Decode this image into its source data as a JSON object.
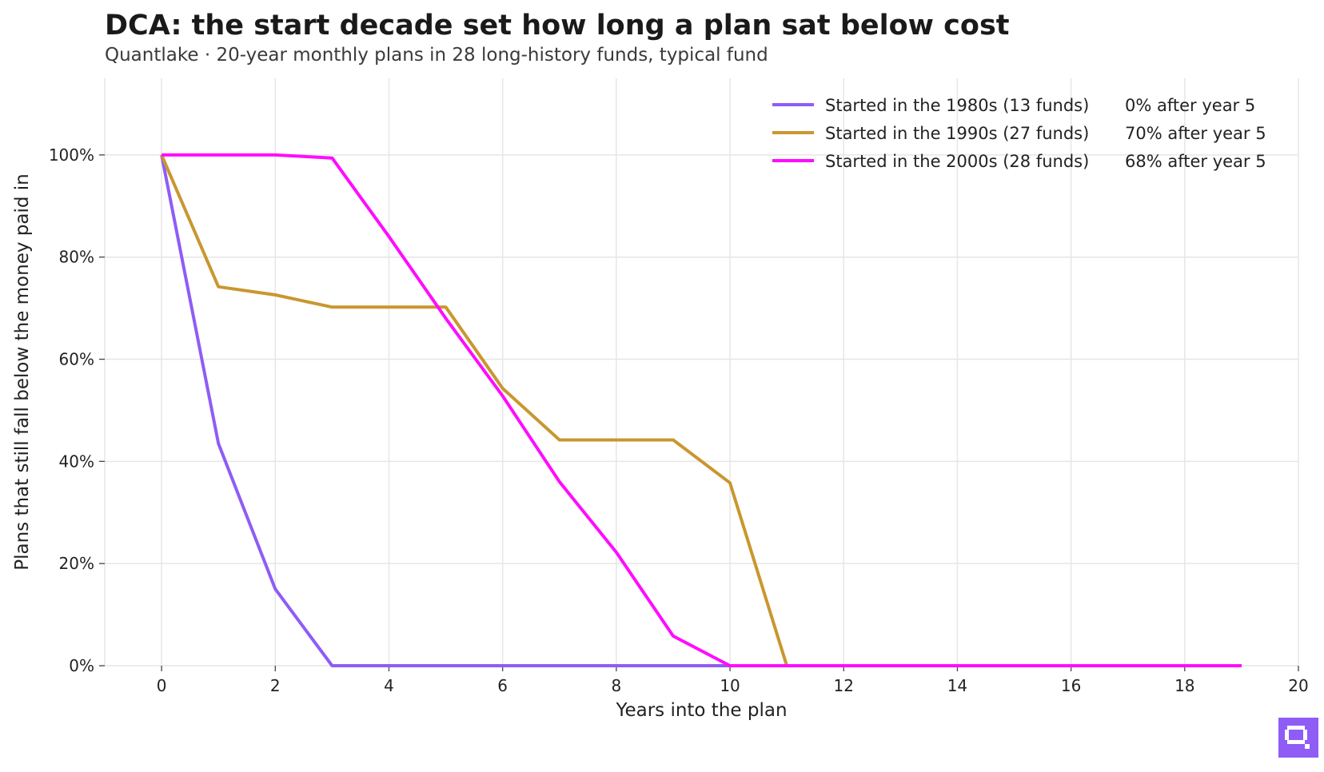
{
  "header": {
    "title": "DCA: the start decade set how long a plan sat below cost",
    "subtitle": "Quantlake  ·  20-year monthly plans in 28 long-history funds, typical fund"
  },
  "chart_data": {
    "type": "line",
    "title": "DCA: the start decade set how long a plan sat below cost",
    "subtitle": "Quantlake  ·  20-year monthly plans in 28 long-history funds, typical fund",
    "xlabel": "Years into the plan",
    "ylabel": "Plans that still fall below the money paid in",
    "xlim": [
      -1,
      20
    ],
    "ylim": [
      0,
      1.15
    ],
    "x_ticks": [
      0,
      2,
      4,
      6,
      8,
      10,
      12,
      14,
      16,
      18,
      20
    ],
    "x_tick_labels": [
      "0",
      "2",
      "4",
      "6",
      "8",
      "10",
      "12",
      "14",
      "16",
      "18",
      "20"
    ],
    "y_ticks": [
      0,
      0.2,
      0.4,
      0.6,
      0.8,
      1.0
    ],
    "y_tick_labels": [
      "0%",
      "20%",
      "40%",
      "60%",
      "80%",
      "100%"
    ],
    "grid": true,
    "legend_position": "top-right",
    "series": [
      {
        "name": "Started in the 1980s (13 funds)",
        "legend_note": "0% after year 5",
        "color": "#8f5cf6",
        "x": [
          0,
          1,
          2,
          3,
          4,
          5,
          6,
          7,
          8,
          9,
          10,
          11,
          12,
          13,
          14,
          15,
          16,
          17,
          18,
          19
        ],
        "y": [
          1.0,
          0.435,
          0.15,
          0.0,
          0.0,
          0.0,
          0.0,
          0.0,
          0.0,
          0.0,
          0.0,
          0.0,
          0.0,
          0.0,
          0.0,
          0.0,
          0.0,
          0.0,
          0.0,
          0.0
        ]
      },
      {
        "name": "Started in the 1990s (27 funds)",
        "legend_note": "70% after year 5",
        "color": "#c9972f",
        "x": [
          0,
          1,
          2,
          3,
          4,
          5,
          6,
          7,
          8,
          9,
          10,
          11,
          12,
          13,
          14,
          15,
          16,
          17,
          18,
          19
        ],
        "y": [
          1.0,
          0.742,
          0.726,
          0.702,
          0.702,
          0.702,
          0.543,
          0.442,
          0.442,
          0.442,
          0.358,
          0.0,
          0.0,
          0.0,
          0.0,
          0.0,
          0.0,
          0.0,
          0.0,
          0.0
        ]
      },
      {
        "name": "Started in the 2000s (28 funds)",
        "legend_note": "68% after year 5",
        "color": "#ff0cff",
        "x": [
          0,
          1,
          2,
          3,
          4,
          5,
          6,
          7,
          8,
          9,
          10,
          11,
          12,
          13,
          14,
          15,
          16,
          17,
          18,
          19
        ],
        "y": [
          1.0,
          1.0,
          1.0,
          0.994,
          0.84,
          0.68,
          0.528,
          0.36,
          0.222,
          0.058,
          0.0,
          0.0,
          0.0,
          0.0,
          0.0,
          0.0,
          0.0,
          0.0,
          0.0,
          0.0
        ]
      }
    ]
  },
  "branding": {
    "logo_icon": "quantlake-logo-icon",
    "logo_color": "#8f5cf6"
  }
}
